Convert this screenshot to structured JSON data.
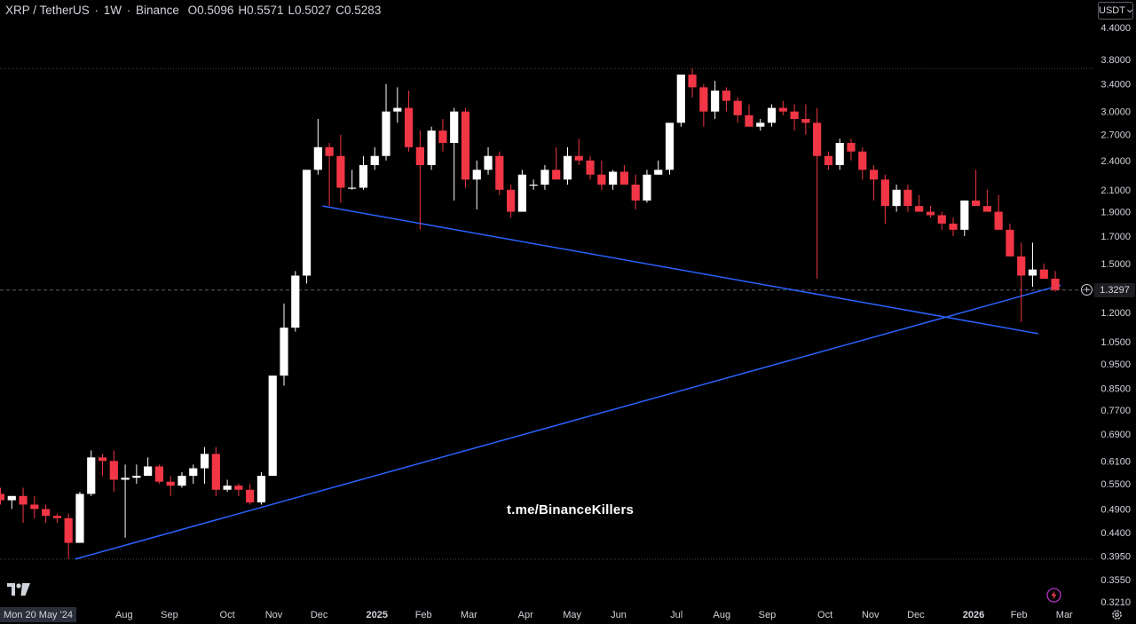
{
  "header": {
    "symbol": "XRP / TetherUS",
    "interval": "1W",
    "exchange": "Binance",
    "open_label": "O",
    "open": "0.5096",
    "high_label": "H",
    "high": "0.5571",
    "low_label": "L",
    "low": "0.5027",
    "close_label": "C",
    "close": "0.5283"
  },
  "currency": "USDT",
  "current_price_label": "1.3297",
  "watermark": "t.me/BinanceKillers",
  "start_date_label": "Mon 20 May '24",
  "colors": {
    "up": "#ffffff",
    "down": "#f23645",
    "trendline": "#2962ff",
    "background": "#000000"
  },
  "icons": [
    "tradingview-logo",
    "plus-circle-icon",
    "lightning-icon",
    "gear-icon",
    "chevron-down-icon"
  ],
  "chart_data": {
    "type": "candlestick",
    "scale": "log",
    "ylim": [
      0.321,
      4.4
    ],
    "y_ticks": [
      "4.4000",
      "3.8000",
      "3.4000",
      "3.0000",
      "2.7000",
      "2.4000",
      "2.1000",
      "1.9000",
      "1.7000",
      "1.5000",
      "1.2000",
      "1.0500",
      "0.9500",
      "0.8500",
      "0.7700",
      "0.6900",
      "0.6100",
      "0.5500",
      "0.4900",
      "0.4400",
      "0.3950",
      "0.3550",
      "0.3210"
    ],
    "x_ticks": [
      "Aug",
      "Sep",
      "Oct",
      "Nov",
      "Dec",
      "2025",
      "Feb",
      "Mar",
      "Apr",
      "May",
      "Jun",
      "Jul",
      "Aug",
      "Sep",
      "Oct",
      "Nov",
      "Dec",
      "2026",
      "Feb",
      "Mar"
    ],
    "bold_x_ticks": [
      "2025",
      "2026"
    ],
    "current_price": 1.3297,
    "horizontal_lines": [
      3.65,
      0.39
    ],
    "series": [
      {
        "values": [
          [
            0.525,
            0.54,
            0.5,
            0.51
          ],
          [
            0.51,
            0.52,
            0.49,
            0.52
          ],
          [
            0.52,
            0.54,
            0.46,
            0.5
          ],
          [
            0.5,
            0.52,
            0.47,
            0.49
          ],
          [
            0.49,
            0.5,
            0.46,
            0.475
          ],
          [
            0.475,
            0.48,
            0.46,
            0.47
          ],
          [
            0.47,
            0.48,
            0.39,
            0.42
          ],
          [
            0.42,
            0.53,
            0.42,
            0.525
          ],
          [
            0.525,
            0.64,
            0.52,
            0.62
          ],
          [
            0.62,
            0.63,
            0.57,
            0.61
          ],
          [
            0.61,
            0.64,
            0.53,
            0.56
          ],
          [
            0.56,
            0.6,
            0.43,
            0.565
          ],
          [
            0.565,
            0.6,
            0.55,
            0.57
          ],
          [
            0.57,
            0.62,
            0.57,
            0.595
          ],
          [
            0.595,
            0.6,
            0.55,
            0.555
          ],
          [
            0.555,
            0.57,
            0.52,
            0.545
          ],
          [
            0.545,
            0.58,
            0.54,
            0.57
          ],
          [
            0.57,
            0.6,
            0.55,
            0.59
          ],
          [
            0.59,
            0.65,
            0.55,
            0.63
          ],
          [
            0.63,
            0.65,
            0.52,
            0.535
          ],
          [
            0.535,
            0.56,
            0.53,
            0.545
          ],
          [
            0.545,
            0.55,
            0.52,
            0.535
          ],
          [
            0.535,
            0.55,
            0.5,
            0.505
          ],
          [
            0.505,
            0.58,
            0.5,
            0.57
          ],
          [
            0.57,
            0.9,
            0.57,
            0.9
          ],
          [
            0.9,
            1.25,
            0.86,
            1.12
          ],
          [
            1.12,
            1.45,
            1.1,
            1.42
          ],
          [
            1.42,
            2.3,
            1.37,
            2.3
          ],
          [
            2.3,
            2.9,
            2.25,
            2.55
          ],
          [
            2.55,
            2.6,
            1.95,
            2.45
          ],
          [
            2.45,
            2.7,
            1.98,
            2.12
          ],
          [
            2.12,
            2.3,
            2.1,
            2.12
          ],
          [
            2.12,
            2.45,
            2.1,
            2.35
          ],
          [
            2.35,
            2.55,
            2.3,
            2.45
          ],
          [
            2.45,
            3.4,
            2.4,
            3.0
          ],
          [
            3.0,
            3.35,
            2.85,
            3.05
          ],
          [
            3.05,
            3.3,
            2.5,
            2.55
          ],
          [
            2.55,
            2.75,
            1.75,
            2.35
          ],
          [
            2.35,
            2.8,
            2.3,
            2.75
          ],
          [
            2.75,
            2.9,
            2.5,
            2.6
          ],
          [
            2.6,
            3.05,
            2.0,
            3.0
          ],
          [
            3.0,
            3.05,
            2.12,
            2.2
          ],
          [
            2.2,
            2.4,
            1.92,
            2.3
          ],
          [
            2.3,
            2.55,
            2.25,
            2.45
          ],
          [
            2.45,
            2.5,
            2.05,
            2.1
          ],
          [
            2.1,
            2.15,
            1.85,
            1.9
          ],
          [
            1.9,
            2.3,
            1.9,
            2.25
          ],
          [
            2.15,
            2.2,
            2.1,
            2.15
          ],
          [
            2.15,
            2.35,
            2.1,
            2.3
          ],
          [
            2.3,
            2.55,
            2.25,
            2.2
          ],
          [
            2.2,
            2.55,
            2.15,
            2.45
          ],
          [
            2.45,
            2.65,
            2.35,
            2.4
          ],
          [
            2.4,
            2.45,
            2.2,
            2.25
          ],
          [
            2.25,
            2.4,
            2.1,
            2.15
          ],
          [
            2.15,
            2.3,
            2.1,
            2.28
          ],
          [
            2.28,
            2.35,
            2.15,
            2.15
          ],
          [
            2.15,
            2.25,
            1.92,
            2.0
          ],
          [
            2.0,
            2.3,
            1.98,
            2.25
          ],
          [
            2.25,
            2.4,
            2.25,
            2.3
          ],
          [
            2.3,
            2.8,
            2.25,
            2.85
          ],
          [
            2.85,
            3.5,
            2.8,
            3.55
          ],
          [
            3.55,
            3.65,
            3.2,
            3.35
          ],
          [
            3.35,
            3.4,
            2.8,
            3.0
          ],
          [
            3.0,
            3.45,
            2.9,
            3.3
          ],
          [
            3.3,
            3.35,
            3.0,
            3.15
          ],
          [
            3.15,
            3.2,
            2.85,
            2.95
          ],
          [
            2.95,
            3.1,
            2.8,
            2.8
          ],
          [
            2.8,
            2.9,
            2.75,
            2.85
          ],
          [
            2.85,
            3.1,
            2.8,
            3.05
          ],
          [
            3.05,
            3.15,
            2.95,
            3.0
          ],
          [
            3.0,
            3.1,
            2.75,
            2.9
          ],
          [
            2.9,
            3.1,
            2.7,
            2.85
          ],
          [
            2.85,
            3.05,
            1.4,
            2.45
          ],
          [
            2.45,
            2.5,
            2.3,
            2.35
          ],
          [
            2.35,
            2.65,
            2.3,
            2.6
          ],
          [
            2.6,
            2.65,
            2.4,
            2.5
          ],
          [
            2.5,
            2.55,
            2.2,
            2.3
          ],
          [
            2.3,
            2.35,
            2.0,
            2.2
          ],
          [
            2.2,
            2.25,
            1.8,
            1.95
          ],
          [
            1.95,
            2.15,
            1.9,
            2.1
          ],
          [
            2.1,
            2.15,
            1.9,
            1.95
          ],
          [
            1.95,
            2.05,
            1.9,
            1.9
          ],
          [
            1.9,
            1.95,
            1.85,
            1.87
          ],
          [
            1.87,
            1.9,
            1.75,
            1.8
          ],
          [
            1.8,
            1.85,
            1.7,
            1.75
          ],
          [
            1.75,
            2.0,
            1.7,
            2.0
          ],
          [
            2.0,
            2.3,
            1.95,
            1.95
          ],
          [
            1.95,
            2.1,
            1.9,
            1.9
          ],
          [
            1.9,
            2.05,
            1.75,
            1.75
          ],
          [
            1.75,
            1.8,
            1.55,
            1.55
          ],
          [
            1.55,
            1.65,
            1.15,
            1.42
          ],
          [
            1.42,
            1.65,
            1.35,
            1.46
          ],
          [
            1.46,
            1.5,
            1.4,
            1.4
          ],
          [
            1.4,
            1.45,
            1.32,
            1.33
          ]
        ]
      }
    ],
    "trendlines": [
      {
        "from": {
          "week": 6.6,
          "price": 0.39
        },
        "to": {
          "week": 93.5,
          "price": 1.36
        }
      },
      {
        "from": {
          "week": 28.4,
          "price": 1.95
        },
        "to": {
          "week": 91.5,
          "price": 1.09
        }
      }
    ]
  }
}
